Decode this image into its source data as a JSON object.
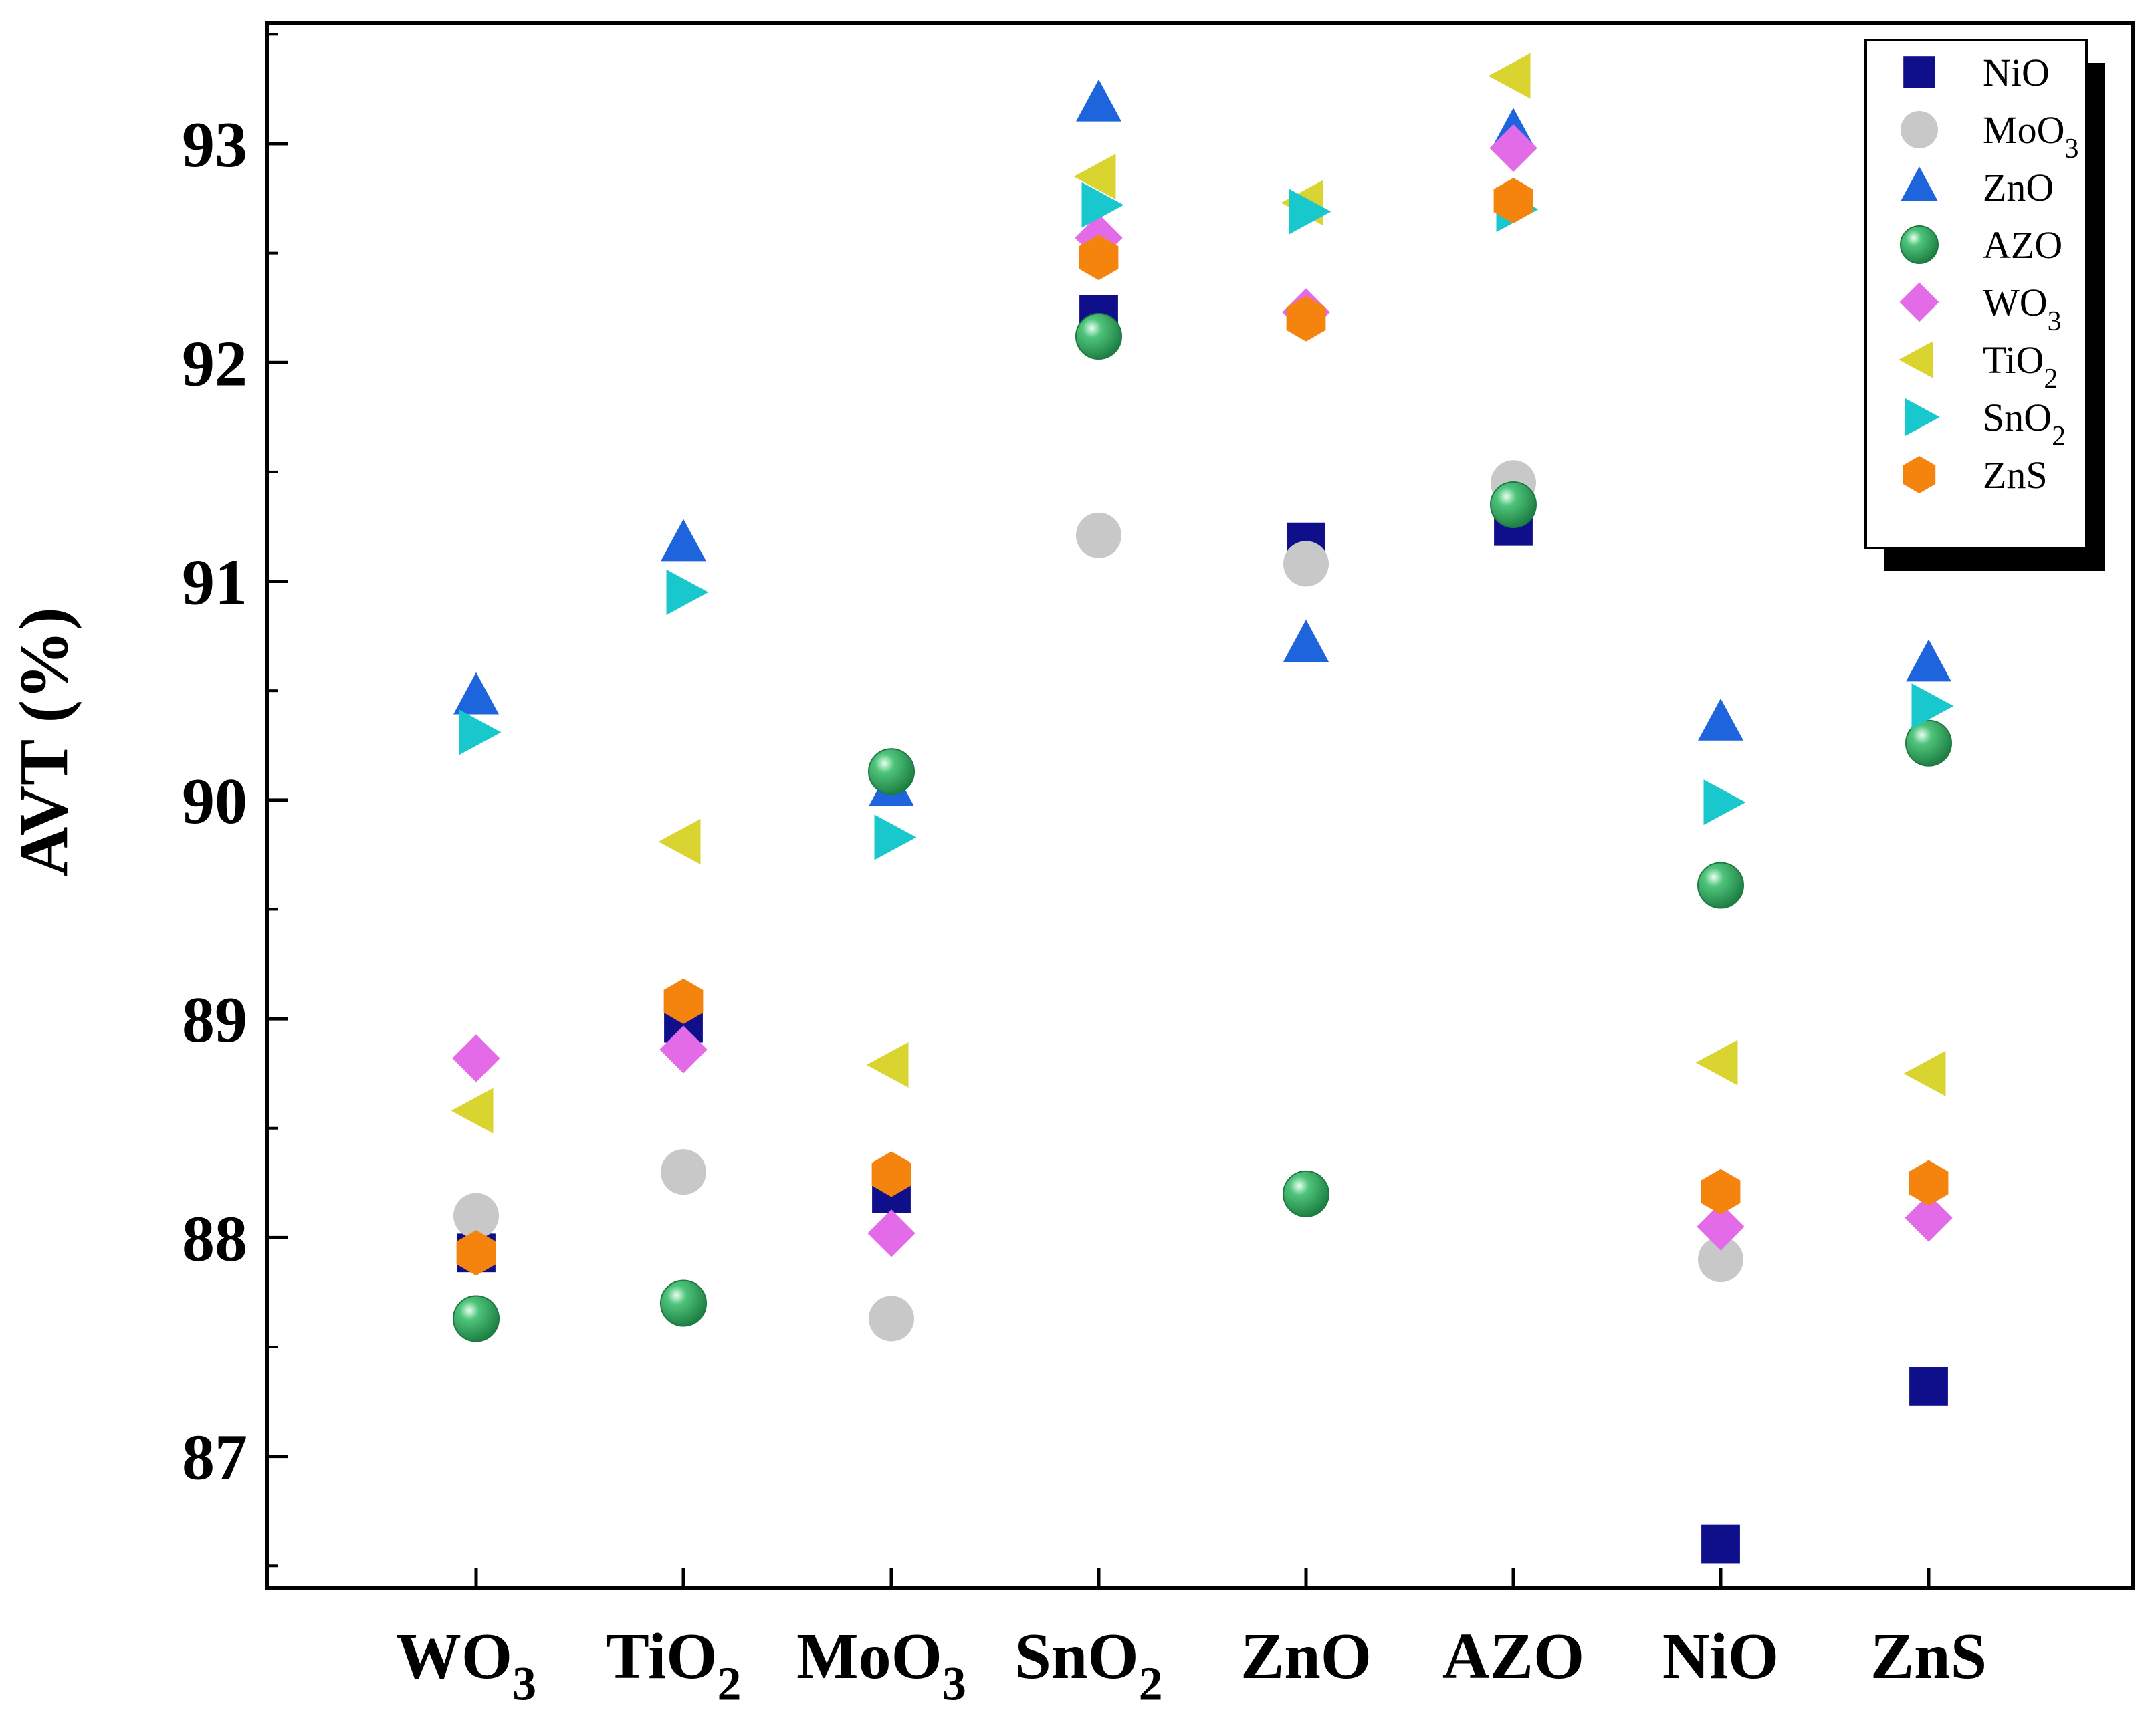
{
  "chart_data": {
    "type": "scatter",
    "title": "",
    "xlabel": "",
    "ylabel": "AVT (%)",
    "ylim": [
      86.4,
      93.55
    ],
    "yticks": [
      87,
      88,
      89,
      90,
      91,
      92,
      93
    ],
    "categories": [
      {
        "main": "WO",
        "sub": "3"
      },
      {
        "main": "TiO",
        "sub": "2"
      },
      {
        "main": "MoO",
        "sub": "3"
      },
      {
        "main": "SnO",
        "sub": "2"
      },
      {
        "main": "ZnO",
        "sub": ""
      },
      {
        "main": "AZO",
        "sub": ""
      },
      {
        "main": "NiO",
        "sub": ""
      },
      {
        "main": "ZnS",
        "sub": ""
      }
    ],
    "grid": false,
    "legend_position": "top-right",
    "series": [
      {
        "name": "NiO",
        "sub": "",
        "marker": "square",
        "color": "#0f0f8c",
        "values": [
          87.93,
          88.98,
          88.2,
          92.22,
          91.18,
          91.25,
          86.6,
          87.32
        ]
      },
      {
        "name": "MoO",
        "sub": "3",
        "marker": "circle",
        "color": "#c8c8c8",
        "values": [
          88.1,
          88.3,
          87.63,
          91.21,
          91.08,
          91.45,
          87.9,
          null
        ]
      },
      {
        "name": "ZnO",
        "sub": "",
        "marker": "triangle-up",
        "color": "#1e64dc",
        "values": [
          90.47,
          91.17,
          90.05,
          93.18,
          90.71,
          93.05,
          90.35,
          90.62
        ]
      },
      {
        "name": "AZO",
        "sub": "",
        "marker": "sphere",
        "color": "#2ea35a",
        "values": [
          87.63,
          87.7,
          90.13,
          92.12,
          88.2,
          91.35,
          89.61,
          90.26
        ]
      },
      {
        "name": "WO",
        "sub": "3",
        "marker": "diamond",
        "color": "#e36be8",
        "values": [
          88.82,
          88.86,
          88.02,
          92.57,
          92.23,
          92.98,
          88.05,
          88.09
        ]
      },
      {
        "name": "TiO",
        "sub": "2",
        "marker": "triangle-left",
        "color": "#d9d430",
        "values": [
          88.58,
          89.81,
          88.79,
          92.85,
          92.73,
          93.31,
          88.8,
          88.75
        ]
      },
      {
        "name": "SnO",
        "sub": "2",
        "marker": "triangle-right",
        "color": "#18c8cc",
        "values": [
          90.31,
          90.95,
          89.83,
          92.72,
          92.69,
          92.7,
          89.99,
          90.43
        ]
      },
      {
        "name": "ZnS",
        "sub": "",
        "marker": "hexagon",
        "color": "#f5840f",
        "values": [
          87.93,
          89.08,
          88.29,
          92.48,
          92.2,
          92.74,
          88.21,
          88.25
        ]
      }
    ]
  }
}
